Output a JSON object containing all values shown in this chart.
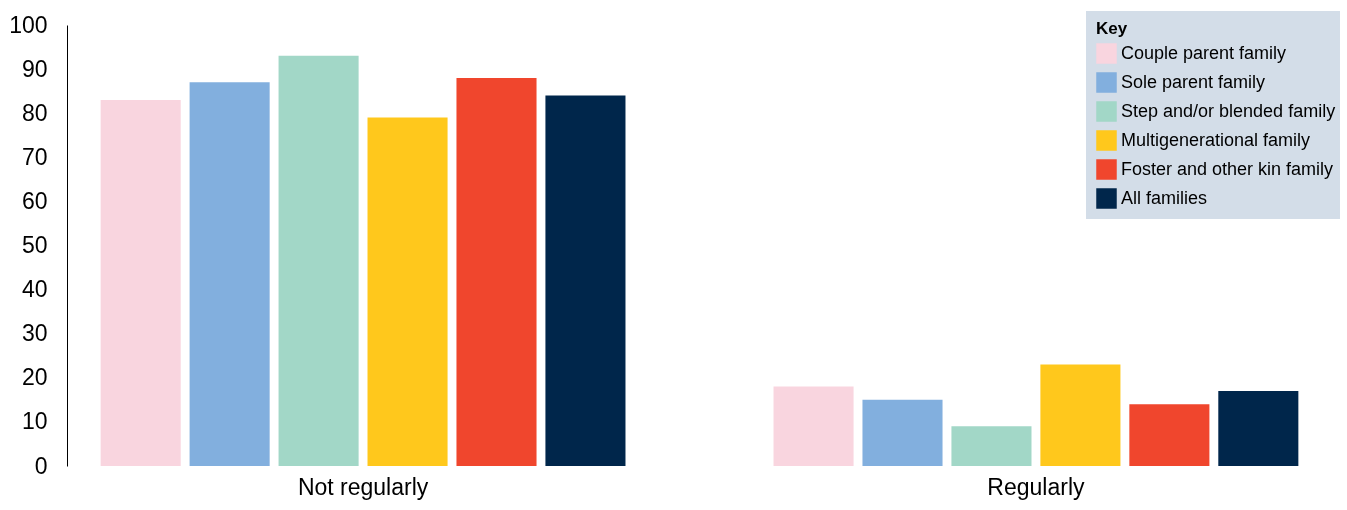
{
  "chart_data": {
    "type": "bar",
    "categories": [
      "Not regularly",
      "Regularly"
    ],
    "series": [
      {
        "name": "Couple parent family",
        "color": "#f9d5df",
        "values": [
          83,
          18
        ]
      },
      {
        "name": "Sole parent family",
        "color": "#82afde",
        "values": [
          87,
          15
        ]
      },
      {
        "name": "Step and/or blended family",
        "color": "#a2d7c7",
        "values": [
          93,
          9
        ]
      },
      {
        "name": "Multigenerational family",
        "color": "#ffc81c",
        "values": [
          79,
          23
        ]
      },
      {
        "name": "Foster and other kin family",
        "color": "#f0462d",
        "values": [
          88,
          14
        ]
      },
      {
        "name": "All families",
        "color": "#00264b",
        "values": [
          84,
          17
        ]
      }
    ],
    "ylim": [
      0,
      100
    ],
    "yticks": [
      0,
      10,
      20,
      30,
      40,
      50,
      60,
      70,
      80,
      90,
      100
    ],
    "grid": false,
    "legend": "top right",
    "legend_title": "Key"
  }
}
